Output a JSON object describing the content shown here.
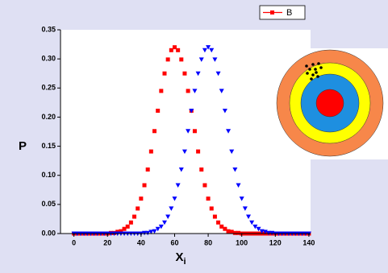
{
  "chart_data": {
    "type": "scatter",
    "xlabel": "X",
    "xlabel_sub": "i",
    "ylabel": "P",
    "x": [
      0,
      2,
      4,
      6,
      8,
      10,
      12,
      14,
      16,
      18,
      20,
      22,
      24,
      26,
      28,
      30,
      32,
      34,
      36,
      38,
      40,
      42,
      44,
      46,
      48,
      50,
      52,
      54,
      56,
      58,
      60,
      62,
      64,
      66,
      68,
      70,
      72,
      74,
      76,
      78,
      80,
      82,
      84,
      86,
      88,
      90,
      92,
      94,
      96,
      98,
      100,
      102,
      104,
      106,
      108,
      110,
      112,
      114,
      116,
      118,
      120,
      122,
      124,
      126,
      128,
      130,
      132,
      134,
      136,
      138,
      140
    ],
    "series": [
      {
        "name": "B",
        "color": "#ff0000",
        "marker": "square",
        "values": [
          0,
          0,
          0,
          0,
          0,
          0,
          0,
          0,
          0,
          0,
          0,
          0.001,
          0.001,
          0.003,
          0.004,
          0.008,
          0.012,
          0.019,
          0.029,
          0.043,
          0.06,
          0.083,
          0.11,
          0.141,
          0.176,
          0.211,
          0.245,
          0.275,
          0.299,
          0.315,
          0.32,
          0.315,
          0.299,
          0.275,
          0.245,
          0.211,
          0.176,
          0.141,
          0.11,
          0.083,
          0.06,
          0.043,
          0.029,
          0.019,
          0.012,
          0.008,
          0.004,
          0.003,
          0.001,
          0.001,
          0,
          0,
          0,
          0,
          0,
          0,
          0,
          0,
          0,
          0,
          0,
          0,
          0,
          0,
          0,
          0,
          0,
          0,
          0,
          0,
          0
        ]
      },
      {
        "color": "#0000ff",
        "marker": "triangle-down",
        "values": [
          0,
          0,
          0,
          0,
          0,
          0,
          0,
          0,
          0,
          0,
          0,
          0,
          0,
          0,
          0,
          0,
          0,
          0,
          0,
          0,
          0,
          0.001,
          0.001,
          0.003,
          0.004,
          0.008,
          0.012,
          0.019,
          0.029,
          0.043,
          0.06,
          0.083,
          0.11,
          0.141,
          0.176,
          0.211,
          0.245,
          0.275,
          0.299,
          0.315,
          0.32,
          0.315,
          0.299,
          0.275,
          0.245,
          0.211,
          0.176,
          0.141,
          0.11,
          0.083,
          0.06,
          0.043,
          0.029,
          0.019,
          0.012,
          0.008,
          0.004,
          0.003,
          0.001,
          0.001,
          0,
          0,
          0,
          0,
          0,
          0,
          0,
          0,
          0,
          0,
          0
        ]
      }
    ],
    "xlim": [
      -8,
      141
    ],
    "ylim": [
      0,
      0.35
    ],
    "xticks": [
      0,
      20,
      40,
      60,
      80,
      100,
      120,
      140
    ],
    "yticks": [
      {
        "value": 0,
        "label": "0.00"
      },
      0.05,
      {
        "value": 0.1,
        "label": "0.10"
      },
      0.15,
      {
        "value": 0.2,
        "label": "0.20"
      },
      0.25,
      {
        "value": 0.3,
        "label": "0.30"
      },
      0.35
    ],
    "legend": "top-right"
  }
}
